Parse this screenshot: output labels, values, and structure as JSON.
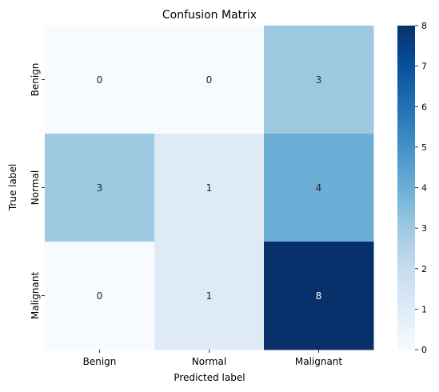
{
  "chart_data": {
    "type": "heatmap",
    "title": "Confusion Matrix",
    "xlabel": "Predicted label",
    "ylabel": "True label",
    "x_categories": [
      "Benign",
      "Normal",
      "Malignant"
    ],
    "y_categories": [
      "Benign",
      "Normal",
      "Malignant"
    ],
    "values": [
      [
        0,
        0,
        3
      ],
      [
        3,
        1,
        4
      ],
      [
        0,
        1,
        8
      ]
    ],
    "colorscale": "Blues",
    "colorbar": {
      "min": 0,
      "max": 8,
      "ticks": [
        "0",
        "1",
        "2",
        "3",
        "4",
        "5",
        "6",
        "7",
        "8"
      ]
    }
  }
}
